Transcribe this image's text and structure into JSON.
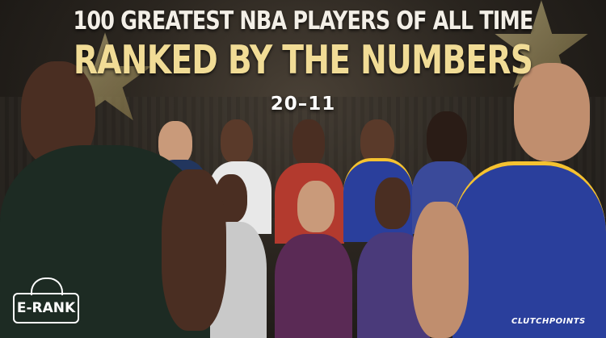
{
  "headline": {
    "line1": "100 GREATEST NBA PLAYERS OF ALL TIME",
    "line2": "RANKED BY THE NUMBERS",
    "range": "20–11"
  },
  "logos": {
    "left": "E-RANK",
    "right": "CLUTCHPOINTS"
  },
  "colors": {
    "title_white": "#f3efe7",
    "title_gold": "#f1dc96",
    "bucks_green": "#1d2b23",
    "warriors_blue": "#2a3f9c",
    "lakers_purple": "#5a2a55",
    "jazz_purple": "#4a3a7a",
    "rockets_red": "#b33a2e",
    "spurs_silver": "#c9c9c9"
  }
}
